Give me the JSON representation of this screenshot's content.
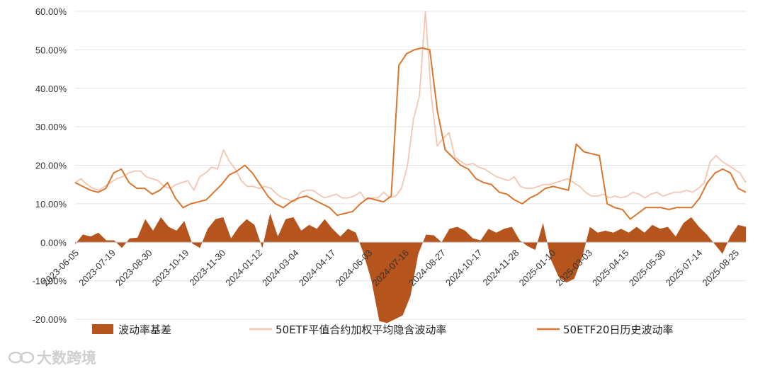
{
  "chart_data": {
    "type": "area",
    "y_tick_labels": [
      "-20.00%",
      "-10.00%",
      "0.00%",
      "10.00%",
      "20.00%",
      "30.00%",
      "40.00%",
      "50.00%",
      "60.00%"
    ],
    "ylim": [
      -20,
      60
    ],
    "x_tick_labels": [
      "2023-06-05",
      "2023-07-19",
      "2023-08-30",
      "2023-10-19",
      "2023-11-30",
      "2024-01-12",
      "2024-03-04",
      "2024-04-17",
      "2024-06-03",
      "2024-07-16",
      "2024-08-27",
      "2024-10-17",
      "2024-11-28",
      "2025-01-10",
      "2025-03-03",
      "2025-04-15",
      "2025-05-30",
      "2025-07-14",
      "2025-08-25"
    ],
    "grid": true,
    "legend_position": "bottom",
    "series": [
      {
        "name": "波动率基差",
        "kind": "area",
        "color": "#b5541c",
        "points": [
          [
            0,
            -0.5
          ],
          [
            1,
            2
          ],
          [
            2,
            1.5
          ],
          [
            3,
            2.5
          ],
          [
            4,
            0.5
          ],
          [
            5,
            0.5
          ],
          [
            6,
            -1.5
          ],
          [
            7,
            1
          ],
          [
            8,
            1.2
          ],
          [
            9,
            6
          ],
          [
            10,
            3
          ],
          [
            11,
            6.5
          ],
          [
            12,
            4
          ],
          [
            13,
            3
          ],
          [
            14,
            5.5
          ],
          [
            15,
            -0.3
          ],
          [
            16,
            -1.5
          ],
          [
            17,
            3.5
          ],
          [
            18,
            6
          ],
          [
            19,
            6.5
          ],
          [
            20,
            1
          ],
          [
            21,
            4
          ],
          [
            22,
            6
          ],
          [
            23,
            4.5
          ],
          [
            24,
            -1.5
          ],
          [
            25,
            7.5
          ],
          [
            26,
            1.5
          ],
          [
            27,
            6
          ],
          [
            28,
            6.5
          ],
          [
            29,
            3
          ],
          [
            30,
            4.5
          ],
          [
            31,
            3.5
          ],
          [
            32,
            6
          ],
          [
            33,
            3.5
          ],
          [
            34,
            1.5
          ],
          [
            35,
            3.5
          ],
          [
            36,
            2.5
          ],
          [
            37,
            -3
          ],
          [
            38,
            -10
          ],
          [
            39,
            -20.5
          ],
          [
            40,
            -21
          ],
          [
            41,
            -20
          ],
          [
            42,
            -19
          ],
          [
            43,
            -14
          ],
          [
            44,
            -3
          ],
          [
            45,
            2
          ],
          [
            46,
            1.8
          ],
          [
            47,
            0
          ],
          [
            48,
            3.5
          ],
          [
            49,
            4
          ],
          [
            50,
            3
          ],
          [
            51,
            1
          ],
          [
            52,
            0.5
          ],
          [
            53,
            3.5
          ],
          [
            54,
            2.5
          ],
          [
            55,
            3.5
          ],
          [
            56,
            4
          ],
          [
            57,
            0.5
          ],
          [
            58,
            -1
          ],
          [
            59,
            -2
          ],
          [
            60,
            5
          ],
          [
            61,
            -4.5
          ],
          [
            62,
            -9
          ],
          [
            63,
            -10.5
          ],
          [
            64,
            -9.5
          ],
          [
            65,
            -4
          ],
          [
            66,
            4
          ],
          [
            67,
            2.5
          ],
          [
            68,
            3
          ],
          [
            69,
            2.5
          ],
          [
            70,
            3.5
          ],
          [
            71,
            2.5
          ],
          [
            72,
            4
          ],
          [
            73,
            2.5
          ],
          [
            74,
            4.5
          ],
          [
            75,
            3.5
          ],
          [
            76,
            4
          ],
          [
            77,
            1.5
          ],
          [
            78,
            5
          ],
          [
            79,
            6.5
          ],
          [
            80,
            4
          ],
          [
            81,
            2
          ],
          [
            82,
            -0.5
          ],
          [
            83,
            -3
          ],
          [
            84,
            1.5
          ],
          [
            85,
            4.5
          ],
          [
            86,
            4
          ]
        ]
      },
      {
        "name": "50ETF平值合约加权平均隐含波动率",
        "kind": "line",
        "color": "#f4c6b0",
        "points": [
          [
            0,
            15.5
          ],
          [
            1,
            16.5
          ],
          [
            2,
            15
          ],
          [
            3,
            14
          ],
          [
            4,
            13.5
          ],
          [
            5,
            14.5
          ],
          [
            6,
            15.5
          ],
          [
            7,
            16.5
          ],
          [
            8,
            17
          ],
          [
            9,
            18
          ],
          [
            10,
            18.5
          ],
          [
            11,
            18.5
          ],
          [
            12,
            17
          ],
          [
            13,
            16.5
          ],
          [
            14,
            16
          ],
          [
            15,
            14.5
          ],
          [
            16,
            14
          ],
          [
            17,
            15
          ],
          [
            18,
            15.5
          ],
          [
            19,
            16
          ],
          [
            20,
            13.5
          ],
          [
            21,
            17
          ],
          [
            22,
            18
          ],
          [
            23,
            19.5
          ],
          [
            24,
            19
          ],
          [
            25,
            24
          ],
          [
            26,
            21
          ],
          [
            27,
            19
          ],
          [
            28,
            16
          ],
          [
            29,
            14.5
          ],
          [
            30,
            14.5
          ],
          [
            31,
            14
          ],
          [
            32,
            14.5
          ],
          [
            33,
            14
          ],
          [
            34,
            12.5
          ],
          [
            35,
            11.5
          ],
          [
            36,
            11
          ],
          [
            37,
            10.5
          ],
          [
            38,
            13
          ],
          [
            39,
            13.5
          ],
          [
            40,
            13.5
          ],
          [
            41,
            12.5
          ],
          [
            42,
            11.5
          ],
          [
            43,
            12
          ],
          [
            44,
            12.5
          ],
          [
            45,
            11.5
          ],
          [
            46,
            11.5
          ],
          [
            47,
            12
          ],
          [
            48,
            13
          ],
          [
            49,
            11
          ],
          [
            50,
            11.5
          ],
          [
            51,
            11.5
          ],
          [
            52,
            13
          ],
          [
            53,
            11.5
          ],
          [
            54,
            12
          ],
          [
            55,
            14
          ],
          [
            56,
            20
          ],
          [
            57,
            32
          ],
          [
            58,
            38
          ],
          [
            59,
            60
          ],
          [
            60,
            38
          ],
          [
            61,
            25
          ],
          [
            62,
            27
          ],
          [
            63,
            28.5
          ],
          [
            64,
            22
          ],
          [
            65,
            21
          ],
          [
            66,
            20
          ],
          [
            67,
            20.5
          ],
          [
            68,
            19.5
          ],
          [
            69,
            19
          ],
          [
            70,
            18
          ],
          [
            71,
            17
          ],
          [
            72,
            16.5
          ],
          [
            73,
            16
          ],
          [
            74,
            17
          ],
          [
            75,
            14.5
          ],
          [
            76,
            14
          ],
          [
            77,
            14
          ],
          [
            78,
            14.5
          ],
          [
            79,
            15
          ],
          [
            80,
            15
          ],
          [
            81,
            15.5
          ],
          [
            82,
            16
          ],
          [
            83,
            16.5
          ],
          [
            84,
            15.5
          ],
          [
            85,
            14.5
          ],
          [
            86,
            13
          ],
          [
            87,
            12
          ],
          [
            88,
            12
          ],
          [
            89,
            12.5
          ],
          [
            90,
            11.5
          ],
          [
            91,
            12
          ],
          [
            92,
            11.5
          ],
          [
            93,
            12
          ],
          [
            94,
            13
          ],
          [
            95,
            12.5
          ],
          [
            96,
            11.5
          ],
          [
            97,
            12.5
          ],
          [
            98,
            13
          ],
          [
            99,
            12
          ],
          [
            100,
            12.5
          ],
          [
            101,
            13
          ],
          [
            102,
            13
          ],
          [
            103,
            13.5
          ],
          [
            104,
            13
          ],
          [
            105,
            14
          ],
          [
            106,
            15.5
          ],
          [
            107,
            21
          ],
          [
            108,
            22.5
          ],
          [
            109,
            21
          ],
          [
            110,
            20
          ],
          [
            111,
            19
          ],
          [
            112,
            18
          ],
          [
            113,
            15.5
          ]
        ]
      },
      {
        "name": "50ETF20日历史波动率",
        "kind": "line",
        "color": "#d8762f",
        "points": [
          [
            0,
            15.5
          ],
          [
            1,
            14.5
          ],
          [
            2,
            13.5
          ],
          [
            3,
            13
          ],
          [
            4,
            14
          ],
          [
            5,
            18
          ],
          [
            6,
            19
          ],
          [
            7,
            15.5
          ],
          [
            8,
            14
          ],
          [
            9,
            14
          ],
          [
            10,
            12.5
          ],
          [
            11,
            13.5
          ],
          [
            12,
            15.5
          ],
          [
            13,
            11.5
          ],
          [
            14,
            9
          ],
          [
            15,
            10
          ],
          [
            16,
            10.5
          ],
          [
            17,
            11
          ],
          [
            18,
            13
          ],
          [
            19,
            15
          ],
          [
            20,
            17.5
          ],
          [
            21,
            18.5
          ],
          [
            22,
            20
          ],
          [
            23,
            18
          ],
          [
            24,
            15
          ],
          [
            25,
            12
          ],
          [
            26,
            10
          ],
          [
            27,
            9
          ],
          [
            28,
            10.5
          ],
          [
            29,
            11.5
          ],
          [
            30,
            12
          ],
          [
            31,
            11
          ],
          [
            32,
            10
          ],
          [
            33,
            9
          ],
          [
            34,
            7
          ],
          [
            35,
            7.5
          ],
          [
            36,
            8
          ],
          [
            37,
            10
          ],
          [
            38,
            11.5
          ],
          [
            39,
            11
          ],
          [
            40,
            10.5
          ],
          [
            41,
            12
          ],
          [
            42,
            46
          ],
          [
            43,
            49
          ],
          [
            44,
            50
          ],
          [
            45,
            50.5
          ],
          [
            46,
            50
          ],
          [
            47,
            34
          ],
          [
            48,
            24
          ],
          [
            49,
            22
          ],
          [
            50,
            20
          ],
          [
            51,
            19
          ],
          [
            52,
            16.5
          ],
          [
            53,
            15.5
          ],
          [
            54,
            15
          ],
          [
            55,
            13
          ],
          [
            56,
            12.5
          ],
          [
            57,
            11
          ],
          [
            58,
            10
          ],
          [
            59,
            11.5
          ],
          [
            60,
            12.5
          ],
          [
            61,
            14
          ],
          [
            62,
            14.5
          ],
          [
            63,
            14
          ],
          [
            64,
            13.5
          ],
          [
            65,
            25.5
          ],
          [
            66,
            23.5
          ],
          [
            67,
            23
          ],
          [
            68,
            22.5
          ],
          [
            69,
            10
          ],
          [
            70,
            9
          ],
          [
            71,
            8.5
          ],
          [
            72,
            6
          ],
          [
            73,
            7.5
          ],
          [
            74,
            9
          ],
          [
            75,
            9
          ],
          [
            76,
            9
          ],
          [
            77,
            8.5
          ],
          [
            78,
            9
          ],
          [
            79,
            9
          ],
          [
            80,
            9
          ],
          [
            81,
            11.5
          ],
          [
            82,
            15.5
          ],
          [
            83,
            18
          ],
          [
            84,
            19
          ],
          [
            85,
            18
          ],
          [
            86,
            14
          ],
          [
            87,
            13
          ]
        ]
      }
    ]
  },
  "watermark": {
    "text": "大数跨境",
    "icon": "infinity-logo-icon"
  }
}
